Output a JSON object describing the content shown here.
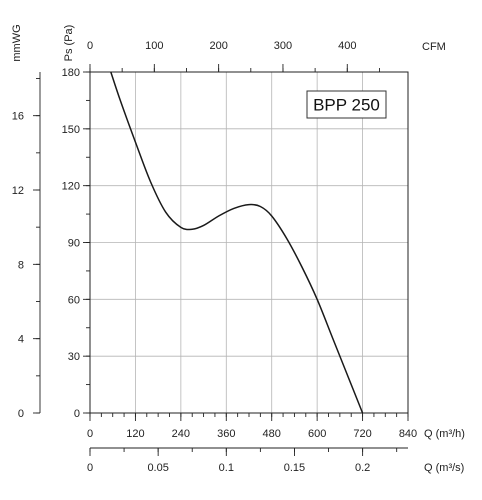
{
  "chart_data": {
    "type": "line",
    "title": "BPP 250",
    "primary_x": {
      "label": "Q (m³/h)",
      "range": [
        0,
        840
      ],
      "ticks": [
        0,
        120,
        240,
        360,
        480,
        600,
        720,
        840
      ],
      "minor_step": 30
    },
    "top_x": {
      "label": "CFM",
      "range_primary": [
        0,
        840
      ],
      "factor_to_primary": 1.699,
      "ticks": [
        0,
        100,
        200,
        300,
        400
      ],
      "minor_step": 50
    },
    "bottom_x": {
      "label": "Q (m³/s)",
      "range": [
        0,
        0.2333
      ],
      "ticks": [
        0,
        0.05,
        0.1,
        0.15,
        0.2
      ],
      "tick_labels": [
        "0",
        "0.05",
        "0.1",
        "0.15",
        "0.2"
      ],
      "minor_step": 0.025
    },
    "y": {
      "label": "Ps (Pa)",
      "range": [
        0,
        180
      ],
      "ticks": [
        0,
        30,
        60,
        90,
        120,
        150,
        180
      ],
      "minor_step": 15
    },
    "y2": {
      "label": "mmWG",
      "range": [
        0,
        18.35
      ],
      "ticks": [
        0,
        4,
        8,
        12,
        16
      ],
      "minor_step": 2
    },
    "grid": true,
    "series": [
      {
        "x": [
          55,
          80,
          120,
          160,
          200,
          240,
          270,
          300,
          340,
          380,
          420,
          450,
          480,
          520,
          560,
          600,
          640,
          680,
          720
        ],
        "values": [
          180,
          165,
          143,
          122,
          106,
          98,
          97,
          99,
          104,
          108,
          110,
          109,
          104,
          92,
          77,
          60,
          40,
          20,
          0
        ]
      }
    ]
  }
}
